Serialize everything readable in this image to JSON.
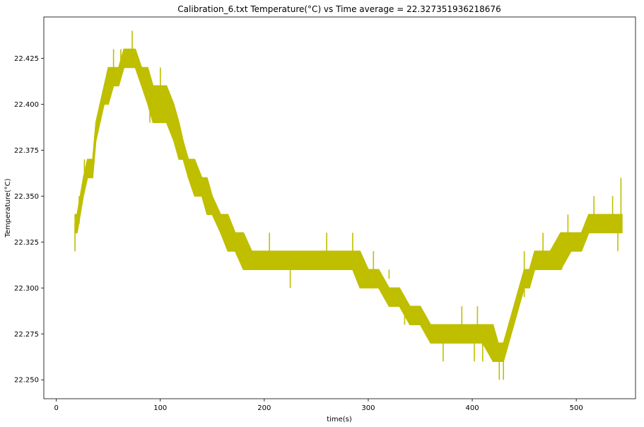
{
  "chart_data": {
    "type": "line",
    "title": "Calibration_6.txt  Temperature(°C) vs Time  average = 22.327351936218676",
    "xlabel": "time(s)",
    "ylabel": "Temperature(°C)",
    "xlim": [
      -12,
      557
    ],
    "ylim": [
      22.2397,
      22.4475
    ],
    "xticks": [
      0,
      100,
      200,
      300,
      400,
      500
    ],
    "yticks": [
      22.25,
      22.275,
      22.3,
      22.325,
      22.35,
      22.375,
      22.4,
      22.425
    ],
    "ytick_labels": [
      "22.250",
      "22.275",
      "22.300",
      "22.325",
      "22.350",
      "22.375",
      "22.400",
      "22.425"
    ],
    "series": [
      {
        "color": "#bfbf00",
        "band": {
          "x": [
            18,
            20,
            23,
            26,
            30,
            35,
            38,
            42,
            46,
            50,
            55,
            60,
            65,
            70,
            76,
            82,
            88,
            93,
            100,
            106,
            113,
            118,
            122,
            127,
            133,
            140,
            145,
            150,
            158,
            165,
            172,
            180,
            188,
            195,
            205,
            215,
            225,
            235,
            245,
            255,
            265,
            275,
            285,
            292,
            300,
            310,
            320,
            330,
            340,
            350,
            360,
            370,
            380,
            390,
            400,
            410,
            420,
            425,
            430,
            435,
            440,
            445,
            450,
            455,
            460,
            468,
            475,
            485,
            495,
            505,
            512,
            520,
            530,
            538,
            544
          ],
          "low": [
            22.33,
            22.33,
            22.34,
            22.35,
            22.36,
            22.36,
            22.38,
            22.39,
            22.4,
            22.4,
            22.41,
            22.41,
            22.42,
            22.42,
            22.42,
            22.41,
            22.4,
            22.39,
            22.39,
            22.39,
            22.38,
            22.37,
            22.37,
            22.36,
            22.35,
            22.35,
            22.34,
            22.34,
            22.33,
            22.32,
            22.32,
            22.31,
            22.31,
            22.31,
            22.31,
            22.31,
            22.31,
            22.31,
            22.31,
            22.31,
            22.31,
            22.31,
            22.31,
            22.3,
            22.3,
            22.3,
            22.29,
            22.29,
            22.28,
            22.28,
            22.27,
            22.27,
            22.27,
            22.27,
            22.27,
            22.27,
            22.26,
            22.26,
            22.26,
            22.27,
            22.28,
            22.29,
            22.3,
            22.3,
            22.31,
            22.31,
            22.31,
            22.31,
            22.32,
            22.32,
            22.33,
            22.33,
            22.33,
            22.33,
            22.33
          ],
          "high": [
            22.34,
            22.34,
            22.35,
            22.36,
            22.37,
            22.37,
            22.39,
            22.4,
            22.41,
            22.42,
            22.42,
            22.42,
            22.43,
            22.43,
            22.43,
            22.42,
            22.42,
            22.41,
            22.41,
            22.41,
            22.4,
            22.39,
            22.38,
            22.37,
            22.37,
            22.36,
            22.36,
            22.35,
            22.34,
            22.34,
            22.33,
            22.33,
            22.32,
            22.32,
            22.32,
            22.32,
            22.32,
            22.32,
            22.32,
            22.32,
            22.32,
            22.32,
            22.32,
            22.32,
            22.31,
            22.31,
            22.3,
            22.3,
            22.29,
            22.29,
            22.28,
            22.28,
            22.28,
            22.28,
            22.28,
            22.28,
            22.28,
            22.27,
            22.27,
            22.28,
            22.29,
            22.3,
            22.31,
            22.31,
            22.32,
            22.32,
            22.32,
            22.33,
            22.33,
            22.33,
            22.34,
            22.34,
            22.34,
            22.34,
            22.34
          ]
        },
        "spikes": [
          [
            18,
            22.32
          ],
          [
            22,
            22.35
          ],
          [
            27,
            22.37
          ],
          [
            40,
            22.39
          ],
          [
            44,
            22.4
          ],
          [
            55,
            22.43
          ],
          [
            62,
            22.43
          ],
          [
            73,
            22.44
          ],
          [
            90,
            22.39
          ],
          [
            100,
            22.42
          ],
          [
            130,
            22.37
          ],
          [
            146,
            22.35
          ],
          [
            165,
            22.34
          ],
          [
            180,
            22.32
          ],
          [
            205,
            22.33
          ],
          [
            225,
            22.3
          ],
          [
            260,
            22.33
          ],
          [
            285,
            22.33
          ],
          [
            305,
            22.32
          ],
          [
            320,
            22.31
          ],
          [
            335,
            22.28
          ],
          [
            345,
            22.28
          ],
          [
            372,
            22.26
          ],
          [
            390,
            22.29
          ],
          [
            402,
            22.26
          ],
          [
            405,
            22.29
          ],
          [
            410,
            22.26
          ],
          [
            420,
            22.28
          ],
          [
            426,
            22.25
          ],
          [
            430,
            22.25
          ],
          [
            450,
            22.32
          ],
          [
            468,
            22.33
          ],
          [
            486,
            22.31
          ],
          [
            492,
            22.34
          ],
          [
            517,
            22.35
          ],
          [
            535,
            22.35
          ],
          [
            540,
            22.32
          ],
          [
            543,
            22.36
          ]
        ]
      }
    ]
  }
}
